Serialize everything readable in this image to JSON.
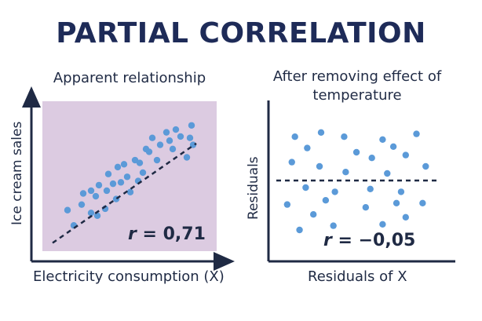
{
  "title": "PARTIAL CORRELATION",
  "chart_data": [
    {
      "type": "scatter",
      "title": "Apparent relationship",
      "xlabel": "Electricity consumption (X)",
      "ylabel": "Ice cream sales",
      "background_color": "#dccbe1",
      "point_color": "#5b9ad8",
      "trend_line": {
        "style": "dashed",
        "from": [
          0.15,
          0.14
        ],
        "to": [
          9.3,
          7.3
        ]
      },
      "annotation": {
        "symbol": "r",
        "text": " = 0,71"
      },
      "xlim": [
        0,
        10
      ],
      "ylim": [
        0,
        10
      ],
      "points": [
        [
          1.1,
          2.5
        ],
        [
          1.5,
          1.4
        ],
        [
          2.0,
          2.9
        ],
        [
          2.1,
          3.7
        ],
        [
          2.6,
          2.3
        ],
        [
          2.9,
          3.5
        ],
        [
          3.0,
          2.1
        ],
        [
          2.6,
          3.9
        ],
        [
          3.1,
          4.3
        ],
        [
          3.5,
          2.6
        ],
        [
          3.6,
          3.9
        ],
        [
          3.7,
          5.1
        ],
        [
          4.0,
          4.4
        ],
        [
          4.2,
          3.3
        ],
        [
          4.3,
          5.6
        ],
        [
          4.5,
          4.5
        ],
        [
          4.7,
          5.8
        ],
        [
          4.9,
          4.9
        ],
        [
          5.1,
          3.8
        ],
        [
          5.4,
          6.1
        ],
        [
          5.7,
          5.9
        ],
        [
          5.6,
          4.6
        ],
        [
          5.9,
          5.2
        ],
        [
          6.1,
          6.9
        ],
        [
          6.3,
          6.7
        ],
        [
          6.5,
          7.7
        ],
        [
          6.8,
          6.1
        ],
        [
          7.0,
          7.2
        ],
        [
          7.4,
          8.1
        ],
        [
          7.6,
          7.5
        ],
        [
          7.8,
          6.9
        ],
        [
          8.0,
          8.3
        ],
        [
          8.3,
          7.8
        ],
        [
          8.7,
          6.3
        ],
        [
          8.9,
          7.7
        ],
        [
          9.0,
          8.6
        ],
        [
          9.1,
          7.2
        ]
      ]
    },
    {
      "type": "scatter",
      "title": "After removing effect of temperature",
      "xlabel": "Residuals of X",
      "ylabel": "Residuals",
      "background_color": "#ffffff",
      "point_color": "#5b9ad8",
      "reference_line": {
        "style": "dashed",
        "y": 0
      },
      "annotation": {
        "symbol": "r",
        "text": " = −0,05"
      },
      "xlim": [
        -5,
        5
      ],
      "ylim": [
        -5,
        5
      ],
      "points": [
        [
          -4.2,
          3.1
        ],
        [
          -2.5,
          3.4
        ],
        [
          -1.0,
          3.1
        ],
        [
          1.5,
          2.9
        ],
        [
          3.7,
          3.3
        ],
        [
          -3.4,
          2.3
        ],
        [
          -0.2,
          2.0
        ],
        [
          2.2,
          2.4
        ],
        [
          0.8,
          1.6
        ],
        [
          3.0,
          1.8
        ],
        [
          -4.4,
          1.3
        ],
        [
          -2.6,
          1.0
        ],
        [
          -0.9,
          0.6
        ],
        [
          1.8,
          0.5
        ],
        [
          4.3,
          1.0
        ],
        [
          -3.5,
          -0.5
        ],
        [
          -1.6,
          -0.8
        ],
        [
          0.7,
          -0.6
        ],
        [
          2.7,
          -0.8
        ],
        [
          -4.7,
          -1.7
        ],
        [
          -2.2,
          -1.4
        ],
        [
          0.4,
          -1.9
        ],
        [
          2.4,
          -1.6
        ],
        [
          4.1,
          -1.6
        ],
        [
          -3.0,
          -2.4
        ],
        [
          -1.7,
          -3.2
        ],
        [
          1.5,
          -3.1
        ],
        [
          3.0,
          -2.6
        ],
        [
          -3.9,
          -3.5
        ]
      ]
    }
  ]
}
